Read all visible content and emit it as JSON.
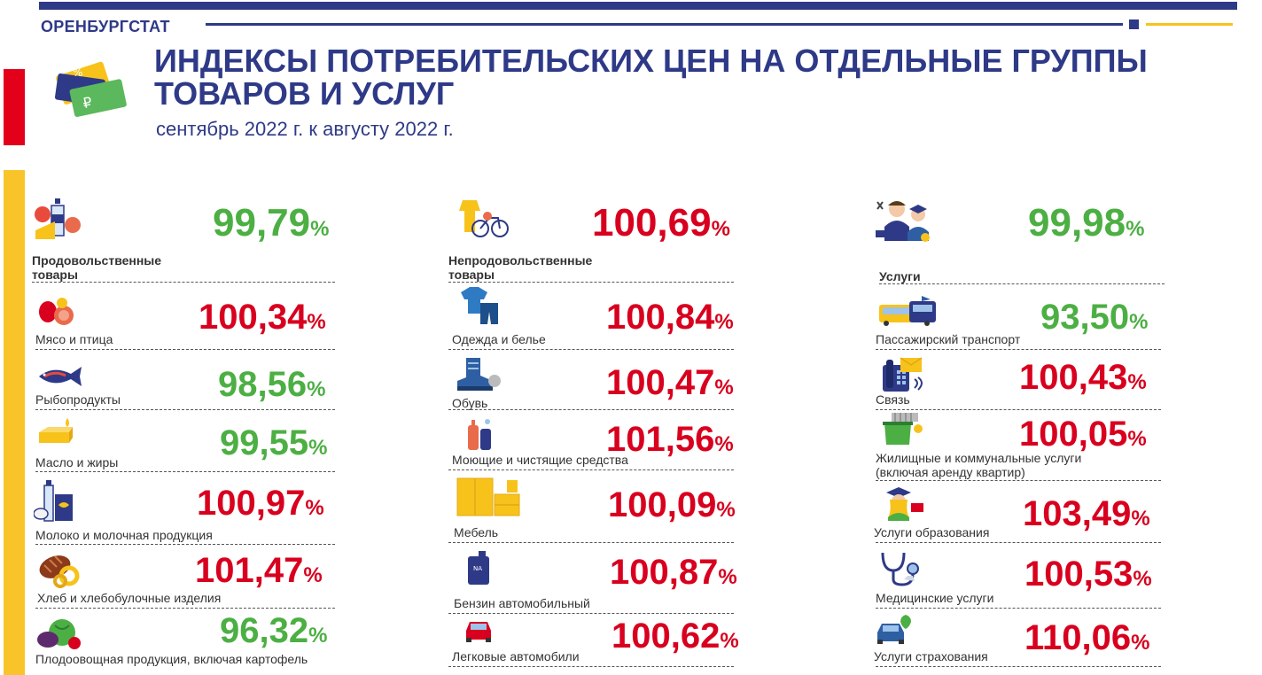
{
  "header": {
    "org": "ОРЕНБУРГСТАТ",
    "title": "ИНДЕКСЫ ПОТРЕБИТЕЛЬСКИХ ЦЕН НА ОТДЕЛЬНЫЕ ГРУППЫ ТОВАРОВ И УСЛУГ",
    "subtitle": "сентябрь 2022 г. к августу 2022 г.",
    "percent_sign": "%"
  },
  "colors": {
    "brand": "#2e3a87",
    "increase": "#d8001e",
    "decrease": "#4caf43",
    "accent_yellow": "#f9c32a",
    "accent_red": "#e3001b"
  },
  "groups": [
    {
      "label": "Продовольственные товары",
      "value": "99,79",
      "trend": "down",
      "icon": "food-icon"
    },
    {
      "label": "Непродовольственные товары",
      "value": "100,69",
      "trend": "up",
      "icon": "nonfood-icon"
    },
    {
      "label": "Услуги",
      "value": "99,98",
      "trend": "down",
      "icon": "services-icon"
    }
  ],
  "food": [
    {
      "label": "Мясо и птица",
      "value": "100,34",
      "trend": "up",
      "icon": "meat-icon"
    },
    {
      "label": "Рыбопродукты",
      "value": "98,56",
      "trend": "down",
      "icon": "fish-icon"
    },
    {
      "label": "Масло и жиры",
      "value": "99,55",
      "trend": "down",
      "icon": "butter-icon"
    },
    {
      "label": "Молоко и молочная продукция",
      "value": "100,97",
      "trend": "up",
      "icon": "milk-icon"
    },
    {
      "label": "Хлеб и хлебобулочные изделия",
      "value": "101,47",
      "trend": "up",
      "icon": "bread-icon"
    },
    {
      "label": "Плодоовощная продукция, включая картофель",
      "value": "96,32",
      "trend": "down",
      "icon": "vegetables-icon"
    }
  ],
  "nonfood": [
    {
      "label": "Одежда и белье",
      "value": "100,84",
      "trend": "up",
      "icon": "clothes-icon"
    },
    {
      "label": "Обувь",
      "value": "100,47",
      "trend": "up",
      "icon": "boot-icon"
    },
    {
      "label": "Моющие и чистящие средства",
      "value": "101,56",
      "trend": "up",
      "icon": "detergent-icon"
    },
    {
      "label": "Мебель",
      "value": "100,09",
      "trend": "up",
      "icon": "furniture-icon"
    },
    {
      "label": "Бензин автомобильный",
      "value": "100,87",
      "trend": "up",
      "icon": "fuel-can-icon"
    },
    {
      "label": "Легковые автомобили",
      "value": "100,62",
      "trend": "up",
      "icon": "car-icon"
    }
  ],
  "services": [
    {
      "label": "Пассажирский транспорт",
      "value": "93,50",
      "trend": "down",
      "icon": "transport-icon"
    },
    {
      "label": "Связь",
      "value": "100,43",
      "trend": "up",
      "icon": "phone-icon"
    },
    {
      "label": "Жилищные и коммунальные услуги",
      "label2": "(включая аренду квартир)",
      "value": "100,05",
      "trend": "up",
      "icon": "housing-icon"
    },
    {
      "label": "Услуги образования",
      "value": "103,49",
      "trend": "up",
      "icon": "education-icon"
    },
    {
      "label": "Медицинские услуги",
      "value": "100,53",
      "trend": "up",
      "icon": "stethoscope-icon"
    },
    {
      "label": "Услуги страхования",
      "value": "110,06",
      "trend": "up",
      "icon": "insurance-icon"
    }
  ]
}
